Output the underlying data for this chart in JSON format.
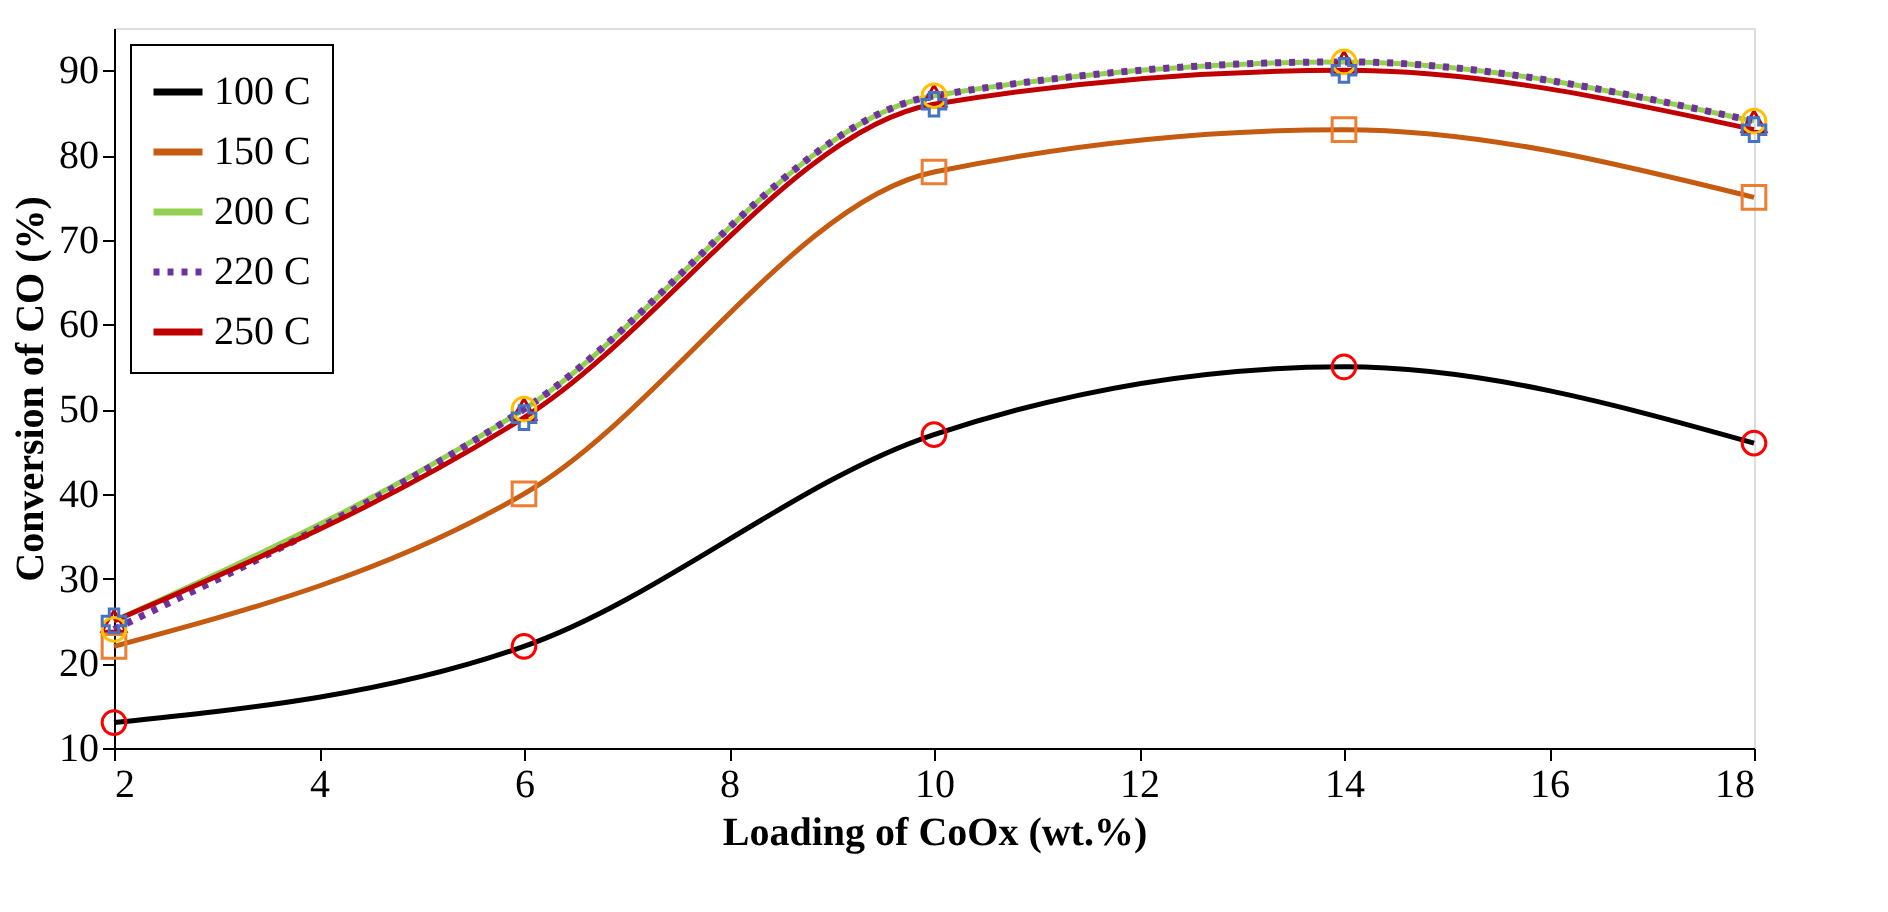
{
  "chart_data": {
    "type": "line",
    "xlabel": "Loading of CoOx (wt.%)",
    "ylabel": "Conversion of CO (%)",
    "x": [
      2,
      6,
      10,
      14,
      18
    ],
    "series": [
      {
        "name": "100 C",
        "color": "#000000",
        "marker": "circle",
        "colors": [
          "#ff0000",
          "#ff0000",
          "#ff0000",
          "#ff0000",
          "#ff0000"
        ],
        "line_style": "solid",
        "values": [
          13,
          22,
          47,
          55,
          46
        ]
      },
      {
        "name": "150 C",
        "color": "#c55a11",
        "marker": "square",
        "colors": [
          "#ed7d31",
          "#ed7d31",
          "#ed7d31",
          "#ed7d31",
          "#ed7d31"
        ],
        "line_style": "solid",
        "values": [
          22,
          40,
          78,
          83,
          75
        ]
      },
      {
        "name": "200 C",
        "color": "#92d050",
        "marker": "triangle",
        "colors": [
          "#c00000",
          "#c00000",
          "#c00000",
          "#c00000",
          "#c00000"
        ],
        "line_style": "solid",
        "values": [
          25,
          50,
          87,
          91,
          84
        ]
      },
      {
        "name": "220 C",
        "color": "#7030a0",
        "marker": "circle",
        "colors": [
          "#ffc000",
          "#ffc000",
          "#ffc000",
          "#ffc000",
          "#ffc000"
        ],
        "line_style": "dotted",
        "values": [
          24,
          50,
          87,
          91,
          84
        ]
      },
      {
        "name": "250 C",
        "color": "#c00000",
        "marker": "cross",
        "colors": [
          "#4472c4",
          "#4472c4",
          "#4472c4",
          "#4472c4",
          "#4472c4"
        ],
        "line_style": "solid",
        "values": [
          25,
          49,
          86,
          90,
          83
        ]
      }
    ],
    "xlim": [
      2,
      18
    ],
    "xticks": [
      2,
      4,
      6,
      8,
      10,
      12,
      14,
      16,
      18
    ],
    "ylim": [
      10,
      95
    ],
    "yticks": [
      10,
      20,
      30,
      40,
      50,
      60,
      70,
      80,
      90
    ],
    "grid": false,
    "legend": "top left"
  }
}
